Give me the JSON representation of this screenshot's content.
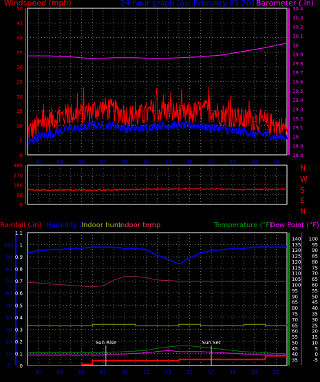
{
  "top_chart": {
    "title_left": "Windspeed (mph)",
    "title_center": "24 hour graph (as:  February 05 2013",
    "title_right": "Barometer (.in)"
  },
  "mid_chart": {
    "compass": [
      "N",
      "W",
      "S",
      "E",
      "N"
    ]
  },
  "bottom_chart": {
    "labels": {
      "rainfall": "Rainfall (.in)",
      "humidity": "Humidity (%)",
      "indoor_hum": "Indoor hum",
      "indoor_temp": "Indoor temp",
      "temperature": "Temperature (°F)",
      "dew_point": "Dew Point (°F)"
    },
    "annotations": {
      "sunrise": "Sun Rise",
      "sunset": "Sun Set"
    }
  },
  "colors": {
    "wind": "#ff0000",
    "wind_avg": "#0000ff",
    "barometer": "#ff00ff",
    "direction": "#ff0000",
    "rain": "#ff0000",
    "humidity": "#0000ff",
    "indoor_hum": "#808000",
    "indoor_temp": "#800040",
    "temperature": "#008000",
    "dew_point": "#ff00ff",
    "left_axis": "#0000ff",
    "right_axis": "#800080",
    "tick_x": "#0000ff",
    "grid": "#bbbbbb"
  },
  "chart_data": [
    {
      "type": "line",
      "x_ticks": [
        "01",
        "03",
        "05",
        "07",
        "09",
        "11",
        "13",
        "15",
        "17",
        "19",
        "21",
        "23"
      ],
      "x_range_hours": [
        0,
        24
      ],
      "y_left": {
        "label": "Windspeed (mph)",
        "range": [
          0,
          50
        ],
        "ticks": [
          0,
          5,
          10,
          15,
          20,
          25,
          30,
          35,
          40,
          45,
          50
        ]
      },
      "y_right": {
        "label": "Barometer (.in)",
        "range": [
          28.8,
          30.4
        ],
        "ticks": [
          "28.8",
          "28.9",
          "29",
          "29.1",
          "29.2",
          "29.3",
          "29.4",
          "29.5",
          "29.6",
          "29.7",
          "29.8",
          "29.9",
          "30",
          "30.1",
          "30.2",
          "30.3",
          "30.4"
        ]
      },
      "series": [
        {
          "name": "Windspeed (mph)",
          "axis": "left",
          "x": [
            0,
            1,
            2,
            3,
            4,
            5,
            6,
            7,
            8,
            9,
            10,
            11,
            12,
            13,
            14,
            15,
            16,
            17,
            18,
            19,
            20,
            21,
            22,
            23,
            24
          ],
          "values": [
            8,
            10,
            12,
            13,
            14,
            14,
            15,
            16,
            15,
            14,
            13,
            14,
            15,
            15,
            14,
            14,
            15,
            15,
            14,
            13,
            12,
            12,
            11,
            10,
            9
          ]
        },
        {
          "name": "Average wind",
          "axis": "left",
          "x": [
            0,
            1,
            2,
            3,
            4,
            5,
            6,
            7,
            8,
            9,
            10,
            11,
            12,
            13,
            14,
            15,
            16,
            17,
            18,
            19,
            20,
            21,
            22,
            23,
            24
          ],
          "values": [
            4,
            6,
            7,
            8,
            9,
            9,
            10,
            10,
            10,
            9,
            9,
            9,
            10,
            10,
            10,
            10,
            10,
            9,
            9,
            8,
            8,
            7,
            7,
            6,
            6
          ]
        },
        {
          "name": "Barometer (.in)",
          "axis": "right",
          "x": [
            0,
            2,
            4,
            6,
            8,
            10,
            12,
            14,
            16,
            18,
            20,
            22,
            24
          ],
          "values": [
            29.88,
            29.88,
            29.87,
            29.85,
            29.86,
            29.86,
            29.85,
            29.86,
            29.87,
            29.89,
            29.93,
            29.97,
            30.02
          ]
        }
      ]
    },
    {
      "type": "line",
      "x_range_hours": [
        0,
        24
      ],
      "y_left": {
        "range": [
          0,
          360
        ],
        "ticks": [
          0,
          90,
          180,
          270,
          360
        ]
      },
      "series": [
        {
          "name": "Wind direction",
          "x": [
            0,
            2,
            4,
            6,
            8,
            10,
            12,
            14,
            16,
            18,
            20,
            22,
            24
          ],
          "values": [
            135,
            132,
            134,
            130,
            134,
            138,
            140,
            142,
            144,
            140,
            136,
            138,
            142
          ]
        }
      ]
    },
    {
      "type": "line",
      "x_ticks": [
        "01",
        "03",
        "05",
        "07",
        "09",
        "11",
        "13",
        "15",
        "17",
        "19",
        "21",
        "23"
      ],
      "x_range_hours": [
        0,
        24
      ],
      "y_left": {
        "label": "Rainfall (.in)",
        "range": [
          0,
          1.1
        ],
        "ticks": [
          "0",
          "0.1",
          "0.2",
          "0.3",
          "0.4",
          "0.5",
          "0.6",
          "0.7",
          "0.8",
          "0.9",
          "1",
          "1.1"
        ],
        "ticks_pct": [
          "0",
          "10",
          "20",
          "30",
          "40",
          "50",
          "60",
          "70",
          "80",
          "90",
          "100"
        ]
      },
      "y_right": {
        "label": "Temperature (°F)",
        "range": [
          30,
          145
        ],
        "ticks": [
          "35",
          "40",
          "45",
          "50",
          "55",
          "60",
          "65",
          "70",
          "75",
          "80",
          "85",
          "90",
          "95",
          "100",
          "105",
          "110",
          "115",
          "120",
          "125",
          "130",
          "135",
          "140"
        ],
        "ticks_alt": [
          "-5",
          "0",
          "5",
          "10",
          "15",
          "20",
          "25",
          "30",
          "35",
          "40",
          "45",
          "50",
          "55",
          "60",
          "65",
          "70",
          "75",
          "80",
          "85",
          "90",
          "95",
          "100"
        ]
      },
      "series": [
        {
          "name": "Humidity (%)",
          "x": [
            0,
            1,
            2,
            3,
            4,
            5,
            6,
            7,
            8,
            9,
            10,
            11,
            12,
            13,
            14,
            15,
            16,
            17,
            18,
            19,
            20,
            21,
            22,
            23,
            24
          ],
          "values": [
            93,
            95,
            96,
            96,
            97,
            97,
            98,
            98,
            98,
            97,
            97,
            96,
            91,
            88,
            84,
            89,
            93,
            95,
            96,
            97,
            97,
            98,
            98,
            98,
            98
          ]
        },
        {
          "name": "Indoor hum",
          "x": [
            0,
            4,
            6,
            8,
            10,
            12,
            14,
            16,
            18,
            20,
            22,
            24
          ],
          "values": [
            33,
            33,
            34,
            34,
            33,
            33,
            34,
            33,
            33,
            34,
            33,
            34
          ]
        },
        {
          "name": "Indoor temp",
          "x": [
            0,
            3,
            6,
            7,
            8,
            9,
            10,
            11,
            12,
            14,
            16,
            18,
            20,
            22,
            24
          ],
          "values": [
            102,
            100,
            98,
            99,
            104,
            107,
            107,
            106,
            104,
            103,
            103,
            103,
            103,
            103,
            103
          ]
        },
        {
          "name": "Temperature (°F)",
          "x": [
            0,
            3,
            5,
            7,
            9,
            11,
            12,
            13,
            14,
            15,
            16,
            18,
            20,
            22,
            24
          ],
          "values": [
            41,
            41,
            41,
            41,
            42,
            43,
            45,
            46,
            47,
            47,
            46,
            44,
            42,
            41,
            40
          ]
        },
        {
          "name": "Dew Point (°F)",
          "x": [
            0,
            3,
            5,
            7,
            9,
            11,
            12,
            13,
            14,
            15,
            16,
            18,
            20,
            22,
            24
          ],
          "values": [
            39,
            39,
            39,
            39,
            40,
            41,
            42,
            43,
            42,
            42,
            42,
            41,
            40,
            39,
            39
          ]
        },
        {
          "name": "Rainfall (.in)",
          "x": [
            0,
            4,
            5,
            6,
            8,
            10,
            12,
            14,
            16,
            18,
            20,
            22,
            24
          ],
          "values": [
            0,
            0,
            0.01,
            0.04,
            0.04,
            0.04,
            0.04,
            0.05,
            0.05,
            0.05,
            0.05,
            0.08,
            0.08
          ]
        }
      ],
      "annotations": [
        {
          "label": "Sun Rise",
          "x": 7.25
        },
        {
          "label": "Sun Set",
          "x": 17.0
        }
      ]
    }
  ]
}
